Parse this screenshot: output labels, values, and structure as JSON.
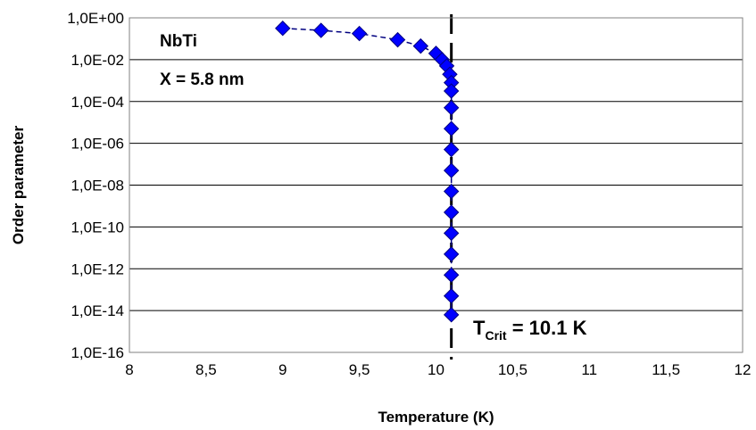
{
  "chart_data": {
    "type": "scatter",
    "title": "",
    "xlabel": "Temperature (K)",
    "ylabel": "Order parameter",
    "xlim": [
      8,
      12
    ],
    "ylim_exp": [
      -16,
      0
    ],
    "yscale": "log",
    "grid": "horizontal",
    "legend": "none",
    "x_ticks": [
      "8",
      "8,5",
      "9",
      "9,5",
      "10",
      "10,5",
      "11",
      "11,5",
      "12"
    ],
    "x_tick_values": [
      8,
      8.5,
      9,
      9.5,
      10,
      10.5,
      11,
      11.5,
      12
    ],
    "y_ticks": [
      "1,0E+00",
      "1,0E-02",
      "1,0E-04",
      "1,0E-06",
      "1,0E-08",
      "1,0E-10",
      "1,0E-12",
      "1,0E-14",
      "1,0E-16"
    ],
    "y_tick_exponents": [
      0,
      -2,
      -4,
      -6,
      -8,
      -10,
      -12,
      -14,
      -16
    ],
    "series": [
      {
        "marker": "diamond",
        "color": "#0000ff",
        "x": [
          9.0,
          9.25,
          9.5,
          9.75,
          9.9,
          10.0,
          10.04,
          10.07,
          10.09,
          10.1,
          10.1,
          10.1,
          10.1,
          10.1,
          10.1,
          10.1,
          10.1,
          10.1,
          10.1,
          10.1,
          10.1,
          10.1
        ],
        "y_exp": [
          -0.5,
          -0.6,
          -0.75,
          -1.05,
          -1.35,
          -1.7,
          -2.0,
          -2.3,
          -2.7,
          -3.1,
          -3.5,
          -4.3,
          -5.3,
          -6.3,
          -7.3,
          -8.3,
          -9.3,
          -10.3,
          -11.3,
          -12.3,
          -13.3,
          -14.2
        ]
      }
    ],
    "vline": {
      "x": 10.1,
      "style": "dashed",
      "color": "#000000"
    },
    "annotations": {
      "material": "NbTi",
      "thickness": "X = 5.8 nm",
      "tcrit_main": "T",
      "tcrit_sub": "Crit",
      "tcrit_value": " = 10.1 K"
    }
  }
}
